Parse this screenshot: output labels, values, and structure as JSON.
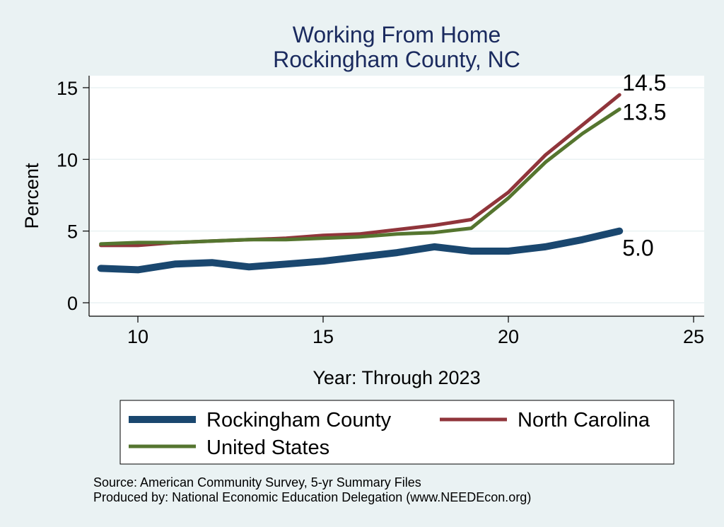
{
  "chart_data": {
    "type": "line",
    "title": "Working From Home",
    "subtitle": "Rockingham County, NC",
    "xlabel": "Year: Through 2023",
    "ylabel": "Percent",
    "xlim": [
      9,
      25
    ],
    "ylim": [
      0,
      16
    ],
    "xticks": [
      10,
      15,
      20,
      25
    ],
    "yticks": [
      0,
      5,
      10,
      15
    ],
    "grid": true,
    "legend_position": "bottom",
    "series": [
      {
        "name": "Rockingham County",
        "color": "#1a476f",
        "x": [
          9,
          10,
          11,
          12,
          13,
          14,
          15,
          16,
          17,
          18,
          19,
          20,
          21,
          22,
          23
        ],
        "y": [
          2.4,
          2.3,
          2.7,
          2.8,
          2.5,
          2.7,
          2.9,
          3.2,
          3.5,
          3.9,
          3.6,
          3.6,
          3.9,
          4.4,
          5.0
        ],
        "end_label": "5.0"
      },
      {
        "name": "North Carolina",
        "color": "#90353b",
        "x": [
          9,
          10,
          11,
          12,
          13,
          14,
          15,
          16,
          17,
          18,
          19,
          20,
          21,
          22,
          23
        ],
        "y": [
          4.0,
          4.0,
          4.2,
          4.3,
          4.4,
          4.5,
          4.7,
          4.8,
          5.1,
          5.4,
          5.8,
          7.7,
          10.3,
          12.4,
          14.5
        ],
        "end_label": "14.5"
      },
      {
        "name": "United States",
        "color": "#55752f",
        "x": [
          9,
          10,
          11,
          12,
          13,
          14,
          15,
          16,
          17,
          18,
          19,
          20,
          21,
          22,
          23
        ],
        "y": [
          4.1,
          4.2,
          4.2,
          4.3,
          4.4,
          4.4,
          4.5,
          4.6,
          4.8,
          4.9,
          5.2,
          7.3,
          9.8,
          11.8,
          13.5
        ],
        "end_label": "13.5"
      }
    ]
  },
  "notes": {
    "source": "Source: American Community Survey, 5-yr Summary Files",
    "produced_by": "Produced by: National Economic Education Delegation (www.NEEDEcon.org)"
  }
}
